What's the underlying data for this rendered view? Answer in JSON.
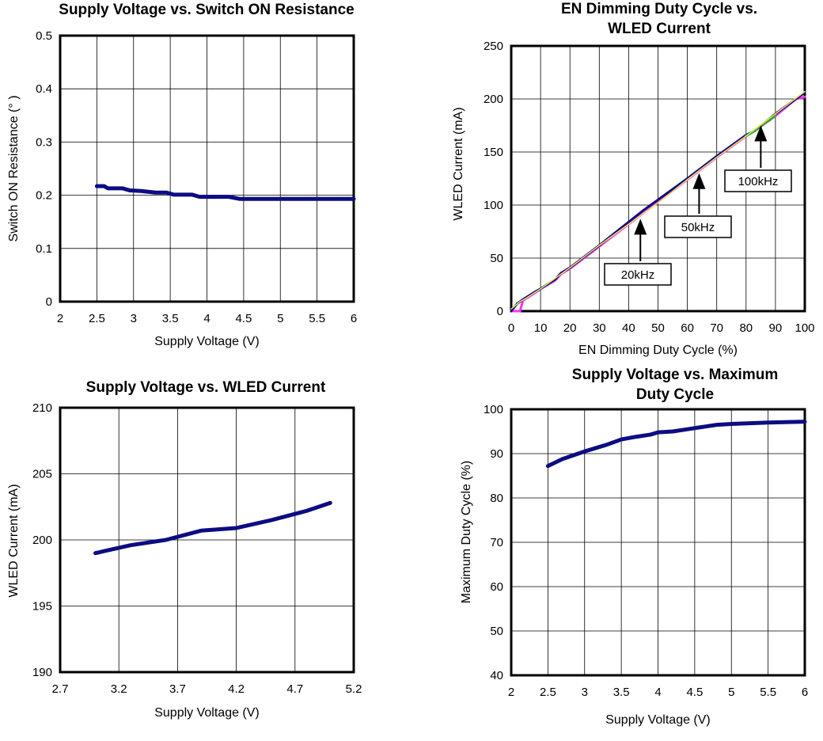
{
  "chart_data": [
    {
      "type": "line",
      "title": [
        "Supply Voltage vs. Switch ON Resistance"
      ],
      "xlabel": "Supply Voltage (V)",
      "ylabel": "Switch ON Resistance (° )",
      "xlim": [
        2,
        6
      ],
      "ylim": [
        0,
        0.5
      ],
      "xticks": [
        "2",
        "2.5",
        "3",
        "3.5",
        "4",
        "4.5",
        "5",
        "5.5",
        "6"
      ],
      "yticks": [
        "0",
        "0.1",
        "0.2",
        "0.3",
        "0.4",
        "0.5"
      ],
      "grid": true,
      "series": [
        {
          "color": "#0c0c82",
          "x": [
            2.5,
            2.6,
            2.65,
            2.85,
            2.95,
            3.1,
            3.3,
            3.45,
            3.55,
            3.8,
            3.9,
            4.3,
            4.45,
            6
          ],
          "y": [
            0.217,
            0.217,
            0.213,
            0.213,
            0.209,
            0.208,
            0.205,
            0.205,
            0.201,
            0.201,
            0.197,
            0.197,
            0.193,
            0.193
          ]
        }
      ]
    },
    {
      "type": "line",
      "title": [
        "EN Dimming Duty Cycle vs.",
        "WLED Current"
      ],
      "xlabel": "EN Dimming Duty Cycle (%)",
      "ylabel": "WLED Current (mA)",
      "xlim": [
        0,
        100
      ],
      "ylim": [
        0,
        250
      ],
      "xticks": [
        "0",
        "10",
        "20",
        "30",
        "40",
        "50",
        "60",
        "70",
        "80",
        "90",
        "100"
      ],
      "yticks": [
        "0",
        "50",
        "100",
        "150",
        "200",
        "250"
      ],
      "grid": true,
      "series": [
        {
          "name": "20kHz",
          "color": "#ff33ff",
          "x": [
            0,
            3,
            4,
            8,
            10,
            15,
            17,
            20,
            30,
            40,
            50,
            60,
            70,
            80,
            85,
            90,
            97,
            100
          ],
          "y": [
            0,
            0,
            10,
            17,
            21,
            29,
            35,
            40,
            61,
            82,
            103,
            124,
            145,
            165,
            174,
            184,
            200,
            202
          ]
        },
        {
          "name": "50kHz",
          "color": "#0c0c82",
          "x": [
            0,
            2,
            4,
            8,
            10,
            15,
            17,
            20,
            30,
            40,
            45,
            50,
            60,
            70,
            80,
            83,
            90,
            100
          ],
          "y": [
            0,
            7,
            11,
            18,
            21,
            30,
            36,
            41,
            62,
            84,
            95,
            105,
            125,
            146,
            166,
            170,
            186,
            206
          ]
        },
        {
          "name": "100kHz",
          "color": "#22aa22",
          "x": [
            80,
            83,
            85,
            88,
            90
          ],
          "y": [
            165,
            170,
            175,
            180,
            185
          ]
        },
        {
          "color": "#e8e84a",
          "x": [
            0,
            3,
            5,
            10,
            20,
            30,
            40,
            50,
            60,
            70,
            80,
            90,
            100
          ],
          "y": [
            2,
            9,
            12,
            21,
            41,
            62,
            82,
            102,
            124,
            145,
            165,
            186,
            207
          ]
        }
      ],
      "annotations": [
        {
          "text": "20kHz",
          "x": 44,
          "y": 87
        },
        {
          "text": "50kHz",
          "x": 64,
          "y": 130
        },
        {
          "text": "100kHz",
          "x": 85,
          "y": 175
        }
      ]
    },
    {
      "type": "line",
      "title": [
        "Supply Voltage vs. WLED Current"
      ],
      "xlabel": "Supply Voltage (V)",
      "ylabel": "WLED Current (mA)",
      "xlim": [
        2.7,
        5.2
      ],
      "ylim": [
        190,
        210
      ],
      "xticks": [
        "2.7",
        "3.2",
        "3.7",
        "4.2",
        "4.7",
        "5.2"
      ],
      "yticks": [
        "190",
        "195",
        "200",
        "205",
        "210"
      ],
      "grid": true,
      "series": [
        {
          "color": "#0c0c82",
          "x": [
            3.0,
            3.3,
            3.6,
            3.9,
            4.2,
            4.5,
            4.8,
            5.0
          ],
          "y": [
            199.0,
            199.6,
            200.0,
            200.7,
            200.9,
            201.5,
            202.2,
            202.8
          ]
        }
      ]
    },
    {
      "type": "line",
      "title": [
        "Supply Voltage vs. Maximum",
        "Duty Cycle"
      ],
      "xlabel": "Supply Voltage (V)",
      "ylabel": "Maximum Duty Cycle (%)",
      "xlim": [
        2,
        6
      ],
      "ylim": [
        40,
        100
      ],
      "xticks": [
        "2",
        "2.5",
        "3",
        "3.5",
        "4",
        "4.5",
        "5",
        "5.5",
        "6"
      ],
      "yticks": [
        "40",
        "50",
        "60",
        "70",
        "80",
        "90",
        "100"
      ],
      "grid": true,
      "series": [
        {
          "color": "#0c0c82",
          "x": [
            2.5,
            2.7,
            3.0,
            3.3,
            3.5,
            3.7,
            3.9,
            4.0,
            4.2,
            4.4,
            4.6,
            4.8,
            5.0,
            5.5,
            6.0
          ],
          "y": [
            87.2,
            88.8,
            90.5,
            92.0,
            93.2,
            93.8,
            94.3,
            94.8,
            95.0,
            95.5,
            96.0,
            96.5,
            96.7,
            97.0,
            97.2
          ]
        }
      ]
    }
  ]
}
